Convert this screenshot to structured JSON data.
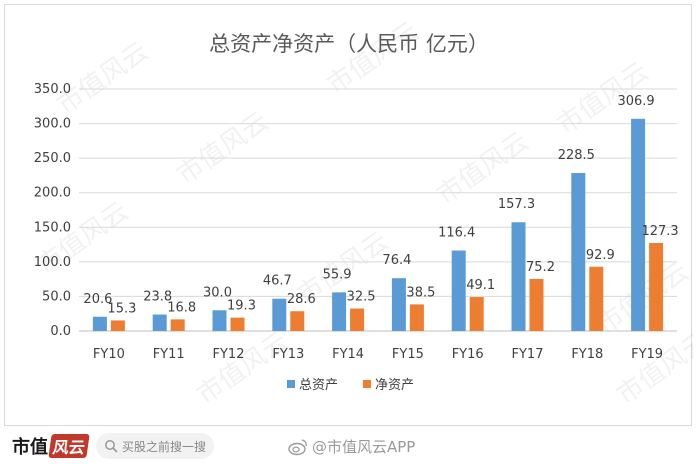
{
  "chart_data": {
    "type": "bar",
    "title": "总资产净资产（人民币 亿元）",
    "categories": [
      "FY10",
      "FY11",
      "FY12",
      "FY13",
      "FY14",
      "FY15",
      "FY16",
      "FY17",
      "FY18",
      "FY19"
    ],
    "series": [
      {
        "name": "总资产",
        "color": "#5b9bd5",
        "values": [
          20.6,
          23.8,
          30.0,
          46.7,
          55.9,
          76.4,
          116.4,
          157.3,
          228.5,
          306.9
        ]
      },
      {
        "name": "净资产",
        "color": "#ed7d31",
        "values": [
          15.3,
          16.8,
          19.3,
          28.6,
          32.5,
          38.5,
          49.1,
          75.2,
          92.9,
          127.3
        ]
      }
    ],
    "ylim": [
      0,
      350
    ],
    "yticks": [
      "0.0",
      "50.0",
      "100.0",
      "150.0",
      "200.0",
      "250.0",
      "300.0",
      "350.0"
    ],
    "ytick_values": [
      0,
      50,
      100,
      150,
      200,
      250,
      300,
      350
    ],
    "grid": true,
    "legend": "bottom-center",
    "xlabel": "",
    "ylabel": ""
  },
  "watermark": {
    "text": "市值风云"
  },
  "footer": {
    "brand_main": "市值",
    "brand_sub": "风云",
    "search_placeholder": "买股之前搜一搜",
    "weibo_text": "微博",
    "account_text": "@市值风云APP"
  }
}
